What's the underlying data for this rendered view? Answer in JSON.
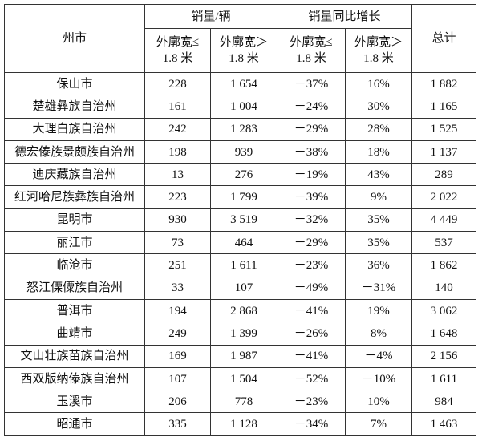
{
  "table": {
    "header": {
      "region": "州市",
      "sales": "销量/辆",
      "growth": "销量同比增长",
      "total": "总计",
      "sub": [
        "外廓宽≤\n1.8 米",
        "外廓宽＞\n1.8 米",
        "外廓宽≤\n1.8 米",
        "外廓宽＞\n1.8 米"
      ]
    },
    "rows": [
      [
        "保山市",
        "228",
        "1 654",
        "－37%",
        "16%",
        "1 882"
      ],
      [
        "楚雄彝族自治州",
        "161",
        "1 004",
        "－24%",
        "30%",
        "1 165"
      ],
      [
        "大理白族自治州",
        "242",
        "1 283",
        "－29%",
        "28%",
        "1 525"
      ],
      [
        "德宏傣族景颇族自治州",
        "198",
        "939",
        "－38%",
        "18%",
        "1 137"
      ],
      [
        "迪庆藏族自治州",
        "13",
        "276",
        "－19%",
        "43%",
        "289"
      ],
      [
        "红河哈尼族彝族自治州",
        "223",
        "1 799",
        "－39%",
        "9%",
        "2 022"
      ],
      [
        "昆明市",
        "930",
        "3 519",
        "－32%",
        "35%",
        "4 449"
      ],
      [
        "丽江市",
        "73",
        "464",
        "－29%",
        "35%",
        "537"
      ],
      [
        "临沧市",
        "251",
        "1 611",
        "－23%",
        "36%",
        "1 862"
      ],
      [
        "怒江傈僳族自治州",
        "33",
        "107",
        "－49%",
        "－31%",
        "140"
      ],
      [
        "普洱市",
        "194",
        "2 868",
        "－41%",
        "19%",
        "3 062"
      ],
      [
        "曲靖市",
        "249",
        "1 399",
        "－26%",
        "8%",
        "1 648"
      ],
      [
        "文山壮族苗族自治州",
        "169",
        "1 987",
        "－41%",
        "－4%",
        "2 156"
      ],
      [
        "西双版纳傣族自治州",
        "107",
        "1 504",
        "－52%",
        "－10%",
        "1 611"
      ],
      [
        "玉溪市",
        "206",
        "778",
        "－23%",
        "10%",
        "984"
      ],
      [
        "昭通市",
        "335",
        "1 128",
        "－34%",
        "7%",
        "1 463"
      ]
    ]
  }
}
